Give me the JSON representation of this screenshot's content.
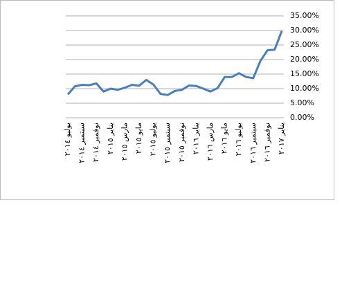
{
  "chart_data": {
    "type": "line",
    "categories": [
      "يوليو ٢٠١٤",
      null,
      "سبتمبر ٢٠١٤",
      null,
      "نوفمبر ٢٠١٤",
      null,
      "يناير ٢٠١٥",
      null,
      "مارس ٢٠١٥",
      null,
      "مايو ٢٠١٥",
      null,
      "يوليو ٢٠١٥",
      null,
      "سبتمبر ٢٠١٥",
      null,
      "نوفمبر ٢٠١٥",
      null,
      "يناير ٢٠١٦",
      null,
      "مارس ٢٠١٦",
      null,
      "مايو ٢٠١٦",
      null,
      "يوليو ٢٠١٦",
      null,
      "سبتمبر ٢٠١٦",
      null,
      "نوفمبر ٢٠١٦",
      null,
      "يناير ٢٠١٧"
    ],
    "values": [
      8,
      10.8,
      11.3,
      11.2,
      11.8,
      9,
      10,
      9.6,
      10.3,
      11.3,
      11,
      13,
      11.4,
      8.2,
      7.8,
      9.2,
      9.6,
      11.1,
      10.9,
      10,
      9,
      10.2,
      14,
      14,
      15.3,
      14,
      13.6,
      19.5,
      23.2,
      23.4,
      29.8
    ],
    "color": "#4a7ebb",
    "ylim": [
      0,
      35
    ],
    "yticks": [
      {
        "value": 0,
        "label": "0.00%"
      },
      {
        "value": 5,
        "label": "5.00%"
      },
      {
        "value": 10,
        "label": "10.00%"
      },
      {
        "value": 15,
        "label": "15.00%"
      },
      {
        "value": 20,
        "label": "20.00%"
      },
      {
        "value": 25,
        "label": "25.00%"
      },
      {
        "value": 30,
        "label": "30.00%"
      },
      {
        "value": 35,
        "label": "35.00%"
      }
    ],
    "grid": true
  }
}
